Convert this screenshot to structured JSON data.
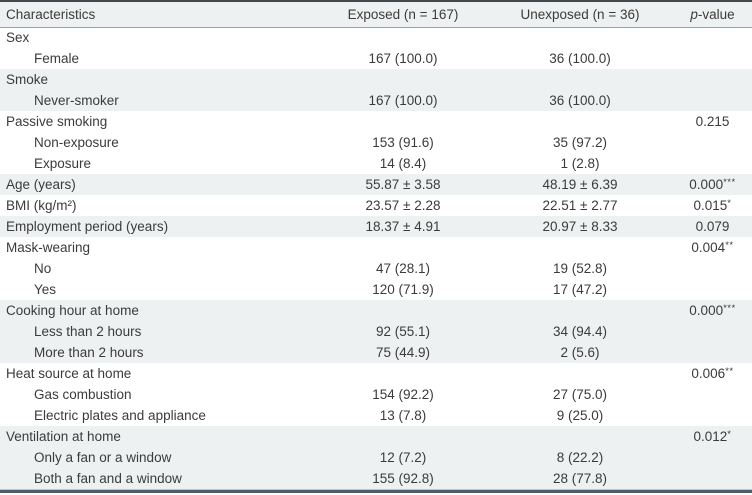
{
  "table_title": "Characteristics of exposed and unexposed groups",
  "colors": {
    "header_background": "#eef1f2",
    "row_shade": "#eef1f1",
    "top_border": "#42484c",
    "header_rule": "#98a4aa",
    "bottom_border": "#4e5d67",
    "text": "#3b3b3b"
  },
  "header": {
    "characteristics": "Characteristics",
    "exposed": "Exposed (n = 167)",
    "unexposed": "Unexposed (n = 36)",
    "p_italic": "p",
    "p_rest": "-value"
  },
  "rows": [
    {
      "label": "Sex",
      "indent": 0,
      "exposed": "",
      "unexposed": "",
      "p": "",
      "p_sup": "",
      "shaded": false
    },
    {
      "label": "Female",
      "indent": 1,
      "exposed": "167 (100.0)",
      "unexposed": "36 (100.0)",
      "p": "",
      "p_sup": "",
      "shaded": false
    },
    {
      "label": "Smoke",
      "indent": 0,
      "exposed": "",
      "unexposed": "",
      "p": "",
      "p_sup": "",
      "shaded": true
    },
    {
      "label": "Never-smoker",
      "indent": 1,
      "exposed": "167 (100.0)",
      "unexposed": "36 (100.0)",
      "p": "",
      "p_sup": "",
      "shaded": true
    },
    {
      "label": "Passive smoking",
      "indent": 0,
      "exposed": "",
      "unexposed": "",
      "p": "0.215",
      "p_sup": "",
      "shaded": false
    },
    {
      "label": "Non-exposure",
      "indent": 1,
      "exposed": "153 (91.6)",
      "unexposed": "35 (97.2)",
      "p": "",
      "p_sup": "",
      "shaded": false
    },
    {
      "label": "Exposure",
      "indent": 1,
      "exposed": "14 (8.4)",
      "unexposed": "1 (2.8)",
      "p": "",
      "p_sup": "",
      "shaded": false
    },
    {
      "label": "Age (years)",
      "indent": 0,
      "exposed": "55.87 ± 3.58",
      "unexposed": "48.19 ± 6.39",
      "p": "0.000",
      "p_sup": "***",
      "shaded": true
    },
    {
      "label": "BMI (kg/m²)",
      "indent": 0,
      "exposed": "23.57 ± 2.28",
      "unexposed": "22.51 ± 2.77",
      "p": "0.015",
      "p_sup": "*",
      "shaded": false
    },
    {
      "label": "Employment period (years)",
      "indent": 0,
      "exposed": "18.37 ± 4.91",
      "unexposed": "20.97 ± 8.33",
      "p": "0.079",
      "p_sup": "",
      "shaded": true
    },
    {
      "label": "Mask-wearing",
      "indent": 0,
      "exposed": "",
      "unexposed": "",
      "p": "0.004",
      "p_sup": "**",
      "shaded": false
    },
    {
      "label": "No",
      "indent": 1,
      "exposed": "47 (28.1)",
      "unexposed": "19 (52.8)",
      "p": "",
      "p_sup": "",
      "shaded": false
    },
    {
      "label": "Yes",
      "indent": 1,
      "exposed": "120 (71.9)",
      "unexposed": "17 (47.2)",
      "p": "",
      "p_sup": "",
      "shaded": false
    },
    {
      "label": "Cooking hour at home",
      "indent": 0,
      "exposed": "",
      "unexposed": "",
      "p": "0.000",
      "p_sup": "***",
      "shaded": true
    },
    {
      "label": "Less than 2 hours",
      "indent": 1,
      "exposed": "92 (55.1)",
      "unexposed": "34 (94.4)",
      "p": "",
      "p_sup": "",
      "shaded": true
    },
    {
      "label": "More than 2 hours",
      "indent": 1,
      "exposed": "75 (44.9)",
      "unexposed": "2 (5.6)",
      "p": "",
      "p_sup": "",
      "shaded": true
    },
    {
      "label": "Heat source at home",
      "indent": 0,
      "exposed": "",
      "unexposed": "",
      "p": "0.006",
      "p_sup": "**",
      "shaded": false
    },
    {
      "label": "Gas combustion",
      "indent": 1,
      "exposed": "154 (92.2)",
      "unexposed": "27 (75.0)",
      "p": "",
      "p_sup": "",
      "shaded": false
    },
    {
      "label": "Electric plates and appliance",
      "indent": 1,
      "exposed": "13 (7.8)",
      "unexposed": "9 (25.0)",
      "p": "",
      "p_sup": "",
      "shaded": false
    },
    {
      "label": "Ventilation at home",
      "indent": 0,
      "exposed": "",
      "unexposed": "",
      "p": "0.012",
      "p_sup": "*",
      "shaded": true
    },
    {
      "label": "Only a fan or a window",
      "indent": 1,
      "exposed": "12 (7.2)",
      "unexposed": "8 (22.2)",
      "p": "",
      "p_sup": "",
      "shaded": true
    },
    {
      "label": "Both a fan and a window",
      "indent": 1,
      "exposed": "155 (92.8)",
      "unexposed": "28 (77.8)",
      "p": "",
      "p_sup": "",
      "shaded": true
    }
  ]
}
